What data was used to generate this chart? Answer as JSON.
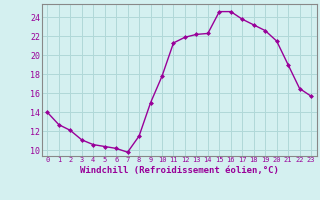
{
  "x": [
    0,
    1,
    2,
    3,
    4,
    5,
    6,
    7,
    8,
    9,
    10,
    11,
    12,
    13,
    14,
    15,
    16,
    17,
    18,
    19,
    20,
    21,
    22,
    23
  ],
  "y": [
    14.0,
    12.7,
    12.1,
    11.1,
    10.6,
    10.4,
    10.2,
    9.8,
    11.5,
    15.0,
    17.8,
    21.3,
    21.9,
    22.2,
    22.3,
    24.6,
    24.6,
    23.8,
    23.2,
    22.6,
    21.5,
    19.0,
    16.5,
    15.7
  ],
  "line_color": "#990099",
  "marker": "D",
  "marker_size": 2,
  "bg_color": "#d4f0f0",
  "grid_color": "#b0d8d8",
  "xlabel": "Windchill (Refroidissement éolien,°C)",
  "xlabel_color": "#990099",
  "tick_color": "#990099",
  "ylim": [
    9.4,
    25.4
  ],
  "yticks": [
    10,
    12,
    14,
    16,
    18,
    20,
    22,
    24
  ],
  "xlim": [
    -0.5,
    23.5
  ],
  "xticks": [
    0,
    1,
    2,
    3,
    4,
    5,
    6,
    7,
    8,
    9,
    10,
    11,
    12,
    13,
    14,
    15,
    16,
    17,
    18,
    19,
    20,
    21,
    22,
    23
  ],
  "spine_color": "#888888",
  "linewidth": 1.0,
  "xlabel_fontsize": 6.5,
  "xtick_fontsize": 5.0,
  "ytick_fontsize": 6.0
}
